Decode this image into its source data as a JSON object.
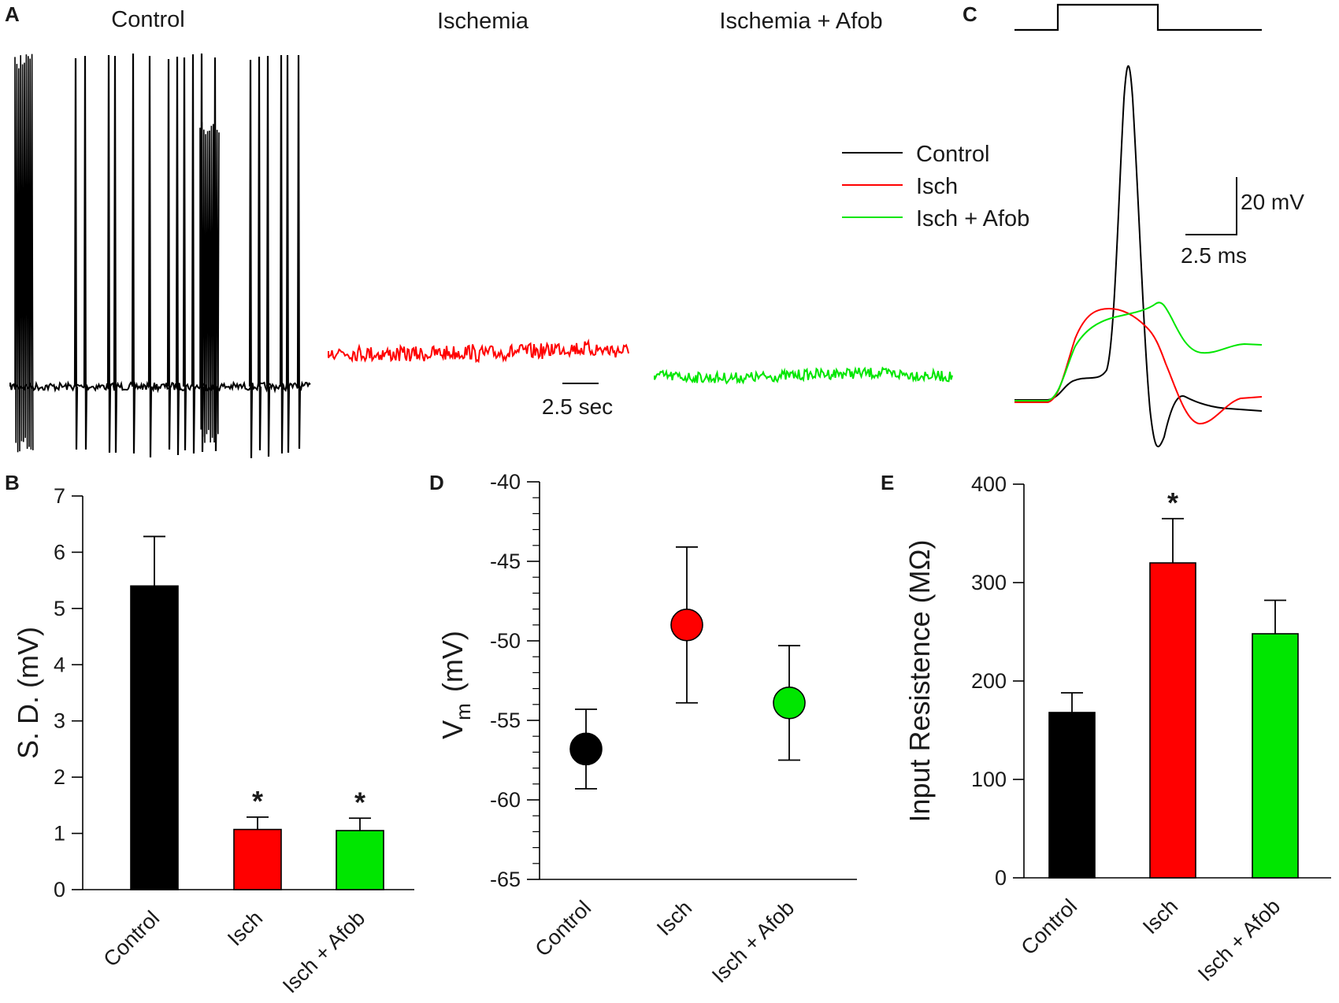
{
  "panel_labels": {
    "a": "A",
    "b": "B",
    "c": "C",
    "d": "D",
    "e": "E"
  },
  "colors": {
    "control": "#000000",
    "isch": "#ff0000",
    "afob": "#00e600"
  },
  "panel_a": {
    "titles": [
      "Control",
      "Ischemia",
      "Ischemia + Afob"
    ],
    "time_scale_label": "2.5 sec"
  },
  "panel_c": {
    "legend": [
      "Control",
      "Isch",
      "Isch + Afob"
    ],
    "voltage_scale_label": "20 mV",
    "time_scale_label": "2.5 ms"
  },
  "chart_data": [
    {
      "panel": "B",
      "type": "bar",
      "categories": [
        "Control",
        "Isch",
        "Isch + Afob"
      ],
      "values": [
        5.4,
        1.07,
        1.05
      ],
      "errors": [
        0.88,
        0.22,
        0.22
      ],
      "significance": [
        "",
        "*",
        "*"
      ],
      "ylabel": "S. D.  (mV)",
      "ylim": [
        0,
        7
      ],
      "yticks": [
        "0",
        "1",
        "2",
        "3",
        "4",
        "5",
        "6",
        "7"
      ]
    },
    {
      "panel": "D",
      "type": "scatter",
      "categories": [
        "Control",
        "Isch",
        "Isch + Afob"
      ],
      "values": [
        -56.8,
        -49.0,
        -53.9
      ],
      "errors": [
        2.5,
        4.9,
        3.6
      ],
      "ylabel_main": "V",
      "ylabel_sub": "m",
      "ylabel_unit": "(mV)",
      "ylim": [
        -65,
        -40
      ],
      "yticks": [
        "-40",
        "-45",
        "-50",
        "-55",
        "-60",
        "-65"
      ]
    },
    {
      "panel": "E",
      "type": "bar",
      "categories": [
        "Control",
        "Isch",
        "Isch + Afob"
      ],
      "values": [
        168,
        320,
        248
      ],
      "errors": [
        20,
        45,
        34
      ],
      "significance": [
        "",
        "*",
        ""
      ],
      "ylabel": "Input Resistence  (MΩ)",
      "ylim": [
        0,
        400
      ],
      "yticks": [
        "0",
        "100",
        "200",
        "300",
        "400"
      ]
    }
  ]
}
